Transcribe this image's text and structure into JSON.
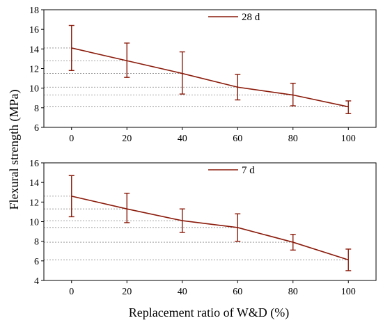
{
  "figure": {
    "ylabel": "Flexural strength (MPa)",
    "xlabel": "Replacement ratio of W&D (%)"
  },
  "colors": {
    "series": "#8b1a0a",
    "errorbar": "#8b1a0a",
    "guide": "#888888",
    "axis": "#000000"
  },
  "chart_data": [
    {
      "type": "line",
      "x": [
        0,
        20,
        40,
        60,
        80,
        100
      ],
      "xlim": [
        -10,
        110
      ],
      "ylim": [
        6,
        18
      ],
      "xticks": [
        0,
        20,
        40,
        60,
        80,
        100
      ],
      "yticks": [
        6,
        8,
        10,
        12,
        14,
        16,
        18
      ],
      "grid": "dashed horizontal guides at each data value",
      "legend_position": "top-right",
      "series": [
        {
          "name": "28 d",
          "values": [
            14.1,
            12.8,
            11.5,
            10.1,
            9.3,
            8.1
          ],
          "error_low": [
            11.8,
            11.1,
            9.4,
            8.8,
            8.2,
            7.4
          ],
          "error_high": [
            16.4,
            14.6,
            13.7,
            11.4,
            10.5,
            8.7
          ]
        }
      ]
    },
    {
      "type": "line",
      "x": [
        0,
        20,
        40,
        60,
        80,
        100
      ],
      "xlim": [
        -10,
        110
      ],
      "ylim": [
        4,
        16
      ],
      "xticks": [
        0,
        20,
        40,
        60,
        80,
        100
      ],
      "yticks": [
        4,
        6,
        8,
        10,
        12,
        14,
        16
      ],
      "grid": "dashed horizontal guides at each data value",
      "legend_position": "top-right",
      "series": [
        {
          "name": "7 d",
          "values": [
            12.6,
            11.3,
            10.1,
            9.4,
            7.9,
            6.1
          ],
          "error_low": [
            10.5,
            9.9,
            8.9,
            8.0,
            7.1,
            5.0
          ],
          "error_high": [
            14.7,
            12.9,
            11.3,
            10.8,
            8.7,
            7.2
          ]
        }
      ]
    }
  ]
}
